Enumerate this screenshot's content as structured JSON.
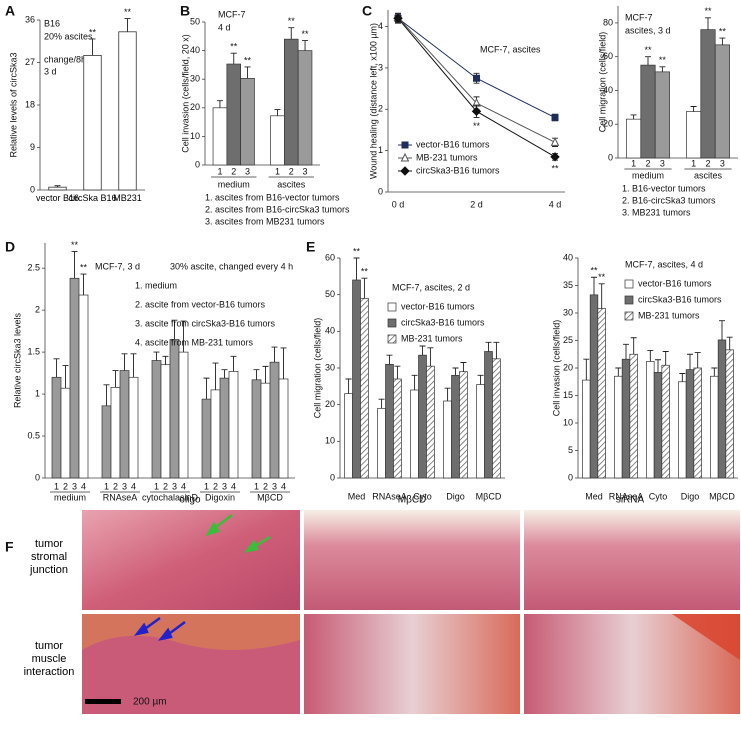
{
  "chart_data": [
    {
      "type": "bar",
      "panel_label": "A",
      "y_label": "Relative levels of circSka3",
      "notes": [
        "B16",
        "20% ascites",
        "change/8h",
        "3 d"
      ],
      "categories": [
        "vector B16",
        "circSka B16",
        "MB231"
      ],
      "values": [
        0.6,
        28.5,
        33.5
      ],
      "errors": [
        0.3,
        3.5,
        2.8
      ],
      "annotations": [
        null,
        "**",
        "**"
      ],
      "color": "#ffffff",
      "ylim": [
        0,
        36
      ],
      "yticks": [
        0,
        9,
        18,
        27,
        36
      ]
    },
    {
      "type": "grouped-bar",
      "panel_label": "B",
      "notes": [
        "MCF-7",
        "4 d"
      ],
      "y_label": "Cell invasion (cells/field, 20 x)",
      "categories": [
        "medium",
        "ascites"
      ],
      "subcategories": [
        "1",
        "2",
        "3"
      ],
      "series": [
        {
          "name": "1. ascites from B16-vector tumors",
          "color": "#ffffff",
          "values": [
            20,
            17.2
          ],
          "errors": [
            2.5,
            2.2
          ],
          "annotations": [
            null,
            null
          ]
        },
        {
          "name": "2. ascites from B16-circSka3 tumors",
          "color": "#6e6e6e",
          "values": [
            35.3,
            44
          ],
          "errors": [
            3.8,
            4
          ],
          "annotations": [
            "**",
            "**"
          ]
        },
        {
          "name": "3. ascites from MB231 tumors",
          "color": "#9a9a9a",
          "values": [
            30.3,
            40
          ],
          "errors": [
            4,
            3.5
          ],
          "annotations": [
            "**",
            "**"
          ]
        }
      ],
      "ylim": [
        0,
        50
      ],
      "yticks": [
        0,
        10,
        20,
        30,
        40,
        50
      ],
      "legend": "below",
      "legend_keys": false
    },
    {
      "type": "line",
      "panel_label": "C",
      "title": "MCF-7, ascites",
      "y_label": "Wound healing (distance left, x100 µm)",
      "categories": [
        "0 d",
        "2 d",
        "4 d"
      ],
      "series": [
        {
          "name": "vector-B16 tumors",
          "color": "#1f2d5c",
          "marker": "square",
          "marker_fill": "#1f2d5c",
          "values": [
            4.2,
            2.75,
            1.8
          ],
          "errors": [
            0.12,
            0.12,
            0.08
          ],
          "annotations": [
            null,
            null,
            null
          ]
        },
        {
          "name": "MB-231 tumors",
          "color": "#555555",
          "marker": "triangle",
          "marker_fill": "#ffffff",
          "values": [
            4.22,
            2.15,
            1.2
          ],
          "errors": [
            0.1,
            0.15,
            0.1
          ],
          "annotations": [
            null,
            null,
            null
          ]
        },
        {
          "name": "circSka3-B16 tumors",
          "color": "#111111",
          "marker": "diamond",
          "marker_fill": "#111111",
          "values": [
            4.2,
            1.95,
            0.85
          ],
          "errors": [
            0.1,
            0.15,
            0.08
          ],
          "annotations": [
            null,
            "**",
            "**"
          ]
        }
      ],
      "ylim": [
        0,
        4.4
      ],
      "yticks": [
        0,
        1,
        2,
        3,
        4
      ],
      "legend": "lower left",
      "legend_keys": true
    },
    {
      "type": "grouped-bar",
      "notes": [
        "MCF-7",
        "ascites, 3 d"
      ],
      "y_label": "Cell migration   (cells/field)",
      "categories": [
        "medium",
        "ascites"
      ],
      "subcategories": [
        "1",
        "2",
        "3"
      ],
      "series": [
        {
          "name": "1. B16-vector tumors",
          "color": "#ffffff",
          "values": [
            23,
            27.5
          ],
          "errors": [
            2.5,
            3
          ],
          "annotations": [
            null,
            null
          ]
        },
        {
          "name": "2. B16-circSka3 tumors",
          "color": "#6e6e6e",
          "values": [
            55,
            76
          ],
          "errors": [
            5,
            7
          ],
          "annotations": [
            "**",
            "**"
          ]
        },
        {
          "name": "3. MB231 tumors",
          "color": "#9a9a9a",
          "values": [
            51,
            67
          ],
          "errors": [
            3,
            4
          ],
          "annotations": [
            "**",
            "**"
          ]
        }
      ],
      "ylim": [
        0,
        90
      ],
      "yticks": [
        0,
        20,
        40,
        60,
        80
      ],
      "legend": "below",
      "legend_keys": false
    },
    {
      "type": "grouped-bar",
      "panel_label": "D",
      "notes": [
        "MCF-7, 3 d",
        "30% ascite, changed every 4 h"
      ],
      "y_label": "Relative circSka3 levels",
      "categories": [
        "medium",
        "RNAseA",
        "cytochalasinD",
        "Digoxin",
        "MβCD"
      ],
      "subcategories": [
        "1",
        "2",
        "3",
        "4"
      ],
      "series": [
        {
          "name": "1. medium",
          "color": "#9a9a9a",
          "values": [
            1.2,
            0.86,
            1.4,
            0.94,
            1.17
          ],
          "errors": [
            0.22,
            0.25,
            0.1,
            0.25,
            0.12
          ],
          "annotations": [
            null,
            null,
            null,
            null,
            null
          ]
        },
        {
          "name": "2. ascite from vector-B16 tumors",
          "color": "#ffffff",
          "values": [
            1.07,
            1.08,
            1.35,
            1.05,
            1.13
          ],
          "errors": [
            0.27,
            0.2,
            0.1,
            0.32,
            0.2
          ],
          "annotations": [
            null,
            null,
            null,
            null,
            null
          ]
        },
        {
          "name": "3. ascite from circSka3-B16 tumors",
          "color": "#9a9a9a",
          "values": [
            2.38,
            1.28,
            1.65,
            1.19,
            1.38
          ],
          "errors": [
            0.32,
            0.2,
            0.23,
            0.1,
            0.18
          ],
          "annotations": [
            "**",
            null,
            null,
            null,
            null
          ]
        },
        {
          "name": "4. ascite from MB-231 tumors",
          "color": "#ffffff",
          "values": [
            2.18,
            1.2,
            1.5,
            1.27,
            1.18
          ],
          "errors": [
            0.25,
            0.28,
            0.37,
            0.18,
            0.37
          ],
          "annotations": [
            "**",
            null,
            null,
            null,
            null
          ]
        }
      ],
      "ylim": [
        0,
        2.8
      ],
      "yticks": [
        0,
        0.5,
        1,
        1.5,
        2,
        2.5
      ],
      "legend": "upper right",
      "legend_keys": false
    },
    {
      "type": "grouped-bar",
      "panel_label": "E",
      "title": "MCF-7, ascites, 2 d",
      "y_label": "Cell migration   (cells/field)",
      "categories": [
        "Med",
        "RNAseA",
        "Cyto",
        "Digo",
        "MβCD"
      ],
      "series": [
        {
          "name": "vector-B16 tumors",
          "color": "#ffffff",
          "values": [
            23,
            19,
            24,
            21,
            25.5
          ],
          "errors": [
            4,
            2.5,
            4,
            3.5,
            2.5
          ],
          "annotations": [
            null,
            null,
            null,
            null,
            null
          ]
        },
        {
          "name": "circSka3-B16 tumors",
          "color": "#6e6e6e",
          "values": [
            54,
            31,
            33.5,
            28,
            34.5
          ],
          "errors": [
            6,
            2.5,
            2.5,
            2,
            2.5
          ],
          "annotations": [
            "**",
            null,
            null,
            null,
            null
          ]
        },
        {
          "name": "MB-231 tumors",
          "color": "#ffffff",
          "hatch": true,
          "values": [
            49,
            27,
            30.5,
            29,
            32.5
          ],
          "errors": [
            5.5,
            3.5,
            5,
            2.5,
            4.5
          ],
          "annotations": [
            "**",
            null,
            null,
            null,
            null
          ]
        }
      ],
      "ylim": [
        0,
        60
      ],
      "yticks": [
        0,
        10,
        20,
        30,
        40,
        50,
        60
      ],
      "legend": "upper right",
      "legend_keys": true
    },
    {
      "type": "grouped-bar",
      "title": "MCF-7, ascites, 4 d",
      "y_label": "Cell invasion  (cells/field)",
      "categories": [
        "Med",
        "RNAseA",
        "Cyto",
        "Digo",
        "MβCD"
      ],
      "series": [
        {
          "name": "vector-B16 tumors",
          "color": "#ffffff",
          "values": [
            17.8,
            18.5,
            21.2,
            17.5,
            18.5
          ],
          "errors": [
            3.8,
            1.5,
            2,
            1.5,
            1.5
          ],
          "annotations": [
            null,
            null,
            null,
            null,
            null
          ]
        },
        {
          "name": "circSka3-B16 tumors",
          "color": "#6e6e6e",
          "values": [
            33.3,
            21.6,
            19.2,
            19.7,
            25.1
          ],
          "errors": [
            3.2,
            2.7,
            2.3,
            2.8,
            3.5
          ],
          "annotations": [
            "**",
            null,
            null,
            null,
            null
          ]
        },
        {
          "name": "MB-231 tumors",
          "color": "#ffffff",
          "hatch": true,
          "values": [
            30.8,
            22.5,
            20.5,
            20,
            23.3
          ],
          "errors": [
            4.5,
            3,
            2.5,
            2.8,
            2.3
          ],
          "annotations": [
            "**",
            null,
            null,
            null,
            null
          ]
        }
      ],
      "ylim": [
        0,
        40
      ],
      "yticks": [
        0,
        5,
        10,
        15,
        20,
        25,
        30,
        35,
        40
      ],
      "legend": "upper right",
      "legend_keys": true
    }
  ],
  "panel_f": {
    "panel_label": "F",
    "columns": [
      "oligo",
      "MβCD",
      "siRNA"
    ],
    "rows": [
      "tumor stromal junction",
      "tumor muscle interaction"
    ],
    "scale_bar": "200 µm"
  }
}
